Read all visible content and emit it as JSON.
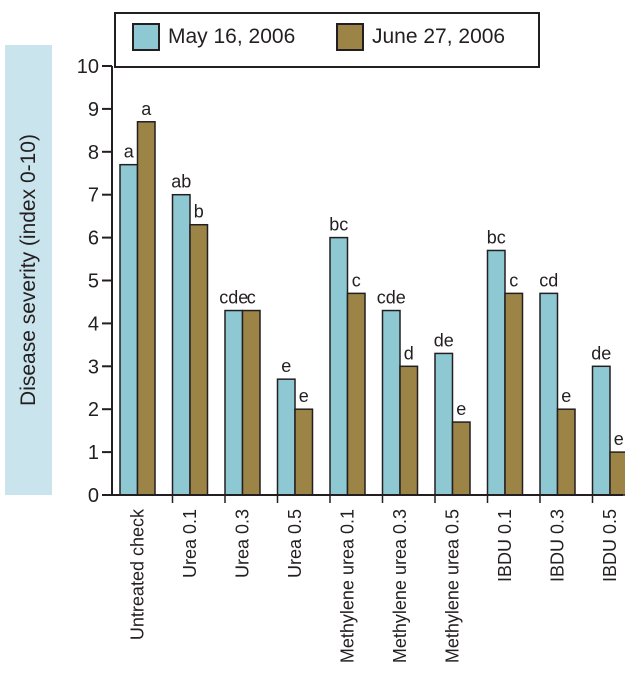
{
  "colors": {
    "may": "#8ec9d3",
    "june": "#9c8446",
    "axis": "#231f20",
    "band": "#c9e4ec"
  },
  "chart_data": {
    "type": "bar",
    "ylabel": "Disease severity (index 0-10)",
    "xlabel": "",
    "ylim": [
      0,
      10
    ],
    "yticks": [
      "0",
      "1",
      "2",
      "3",
      "4",
      "5",
      "6",
      "7",
      "8",
      "9",
      "10"
    ],
    "legend_position": "top",
    "categories": [
      "Untreated check",
      "Urea 0.1",
      "Urea 0.3",
      "Urea 0.5",
      "Methylene urea 0.1",
      "Methylene urea 0.3",
      "Methylene urea 0.5",
      "IBDU 0.1",
      "IBDU 0.3",
      "IBDU 0.5"
    ],
    "series": [
      {
        "name": "May 16, 2006",
        "color": "#8ec9d3",
        "values": [
          7.7,
          7.0,
          4.3,
          2.7,
          6.0,
          4.3,
          3.3,
          5.7,
          4.7,
          3.0
        ],
        "labels": [
          "a",
          "ab",
          "cde",
          "e",
          "bc",
          "cde",
          "de",
          "bc",
          "cd",
          "de"
        ]
      },
      {
        "name": "June 27, 2006",
        "color": "#9c8446",
        "values": [
          8.7,
          6.3,
          4.3,
          2.0,
          4.7,
          3.0,
          1.7,
          4.7,
          2.0,
          1.0
        ],
        "labels": [
          "a",
          "b",
          "c",
          "e",
          "c",
          "d",
          "e",
          "c",
          "e",
          "e"
        ]
      }
    ]
  }
}
